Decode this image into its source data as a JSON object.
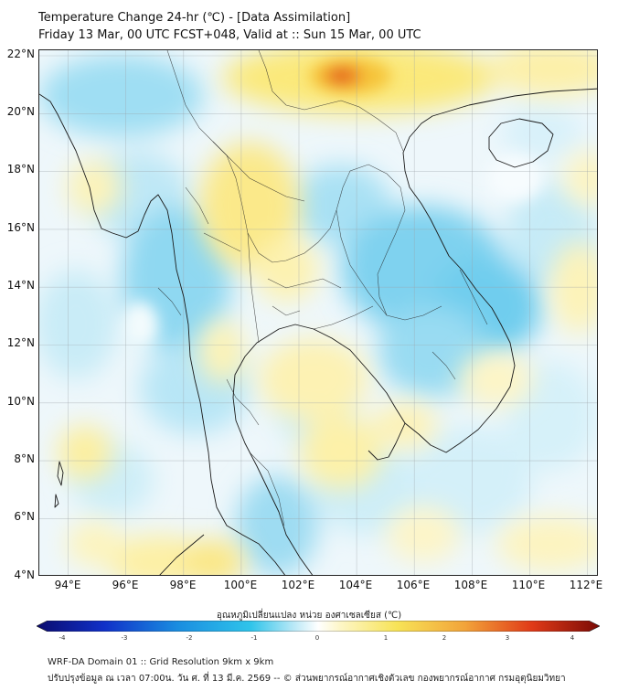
{
  "title": {
    "line1": "Temperature Change 24-hr (℃) - [Data Assimilation]",
    "line2": "Friday 13 Mar, 00 UTC FCST+048, Valid at :: Sun 15 Mar, 00 UTC"
  },
  "axes": {
    "lat_labels": [
      "22°N",
      "20°N",
      "18°N",
      "16°N",
      "14°N",
      "12°N",
      "10°N",
      "8°N",
      "6°N",
      "4°N"
    ],
    "lon_labels": [
      "94°E",
      "96°E",
      "98°E",
      "100°E",
      "102°E",
      "104°E",
      "106°E",
      "108°E",
      "110°E",
      "112°E"
    ],
    "lat_range": [
      4,
      22.2
    ],
    "lon_range": [
      93,
      112.4
    ]
  },
  "colorbar": {
    "title": "อุณหภูมิเปลี่ยนแปลง หน่วย องศาเซลเซียส (℃)",
    "ticks": [
      "-4",
      "-3",
      "-2",
      "-1",
      "0",
      "1",
      "2",
      "3",
      "4"
    ],
    "range": [
      -4,
      4
    ],
    "colors": {
      "min": "#0b0b6e",
      "mid_low": "#2fc4ea",
      "zero": "#ffffff",
      "mid_high": "#f7e357",
      "max": "#7a0a05"
    }
  },
  "footer": {
    "line1": "WRF-DA Domain 01 :: Grid Resolution 9km x 9km",
    "line2": "ปรับปรุงข้อมูล ณ เวลา 07:00น. วัน ศ. ที่ 13 มี.ค. 2569 -- © ส่วนพยากรณ์อากาศเชิงตัวเลข กองพยากรณ์อากาศ กรมอุตุนิยมวิทยา"
  }
}
